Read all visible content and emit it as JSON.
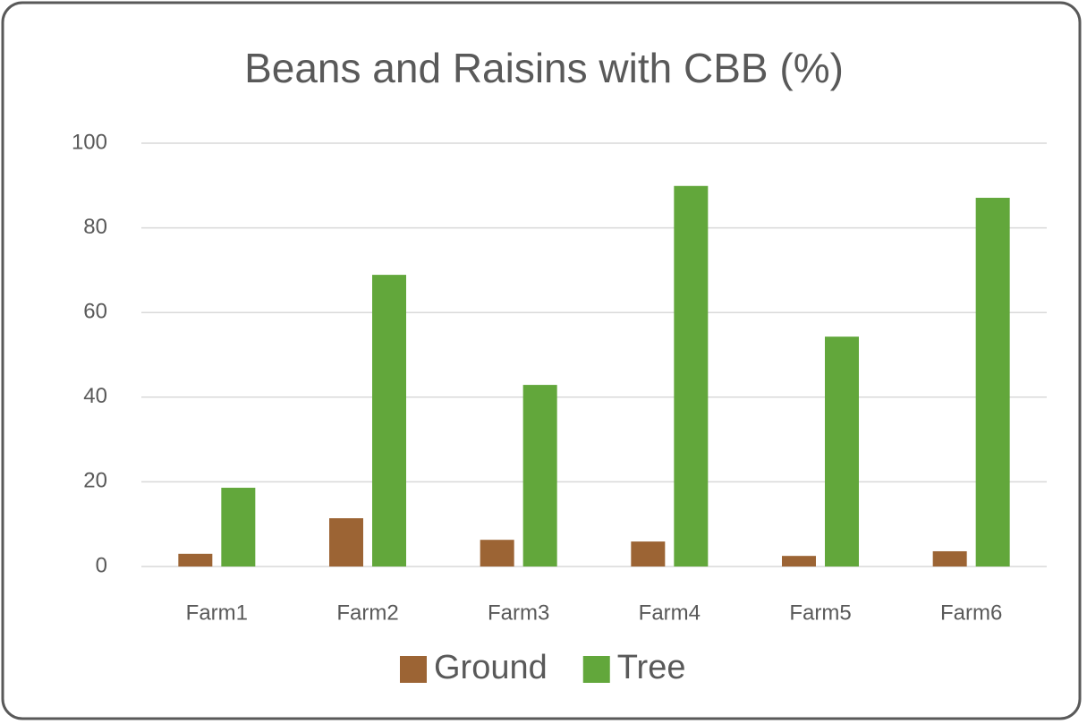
{
  "chart_data": {
    "type": "bar",
    "title": "Beans and Raisins with CBB (%)",
    "categories": [
      "Farm1",
      "Farm2",
      "Farm3",
      "Farm4",
      "Farm5",
      "Farm6"
    ],
    "series": [
      {
        "name": "Ground",
        "color": "#9c6434",
        "values": [
          3.0,
          11.4,
          6.3,
          5.9,
          2.5,
          3.6
        ]
      },
      {
        "name": "Tree",
        "color": "#62a73b",
        "values": [
          18.6,
          68.9,
          42.9,
          89.9,
          54.3,
          87.1
        ]
      }
    ],
    "ylim": [
      0,
      100
    ],
    "yticks": [
      0,
      20,
      40,
      60,
      80,
      100
    ],
    "grid": true,
    "legend": "bottom"
  }
}
